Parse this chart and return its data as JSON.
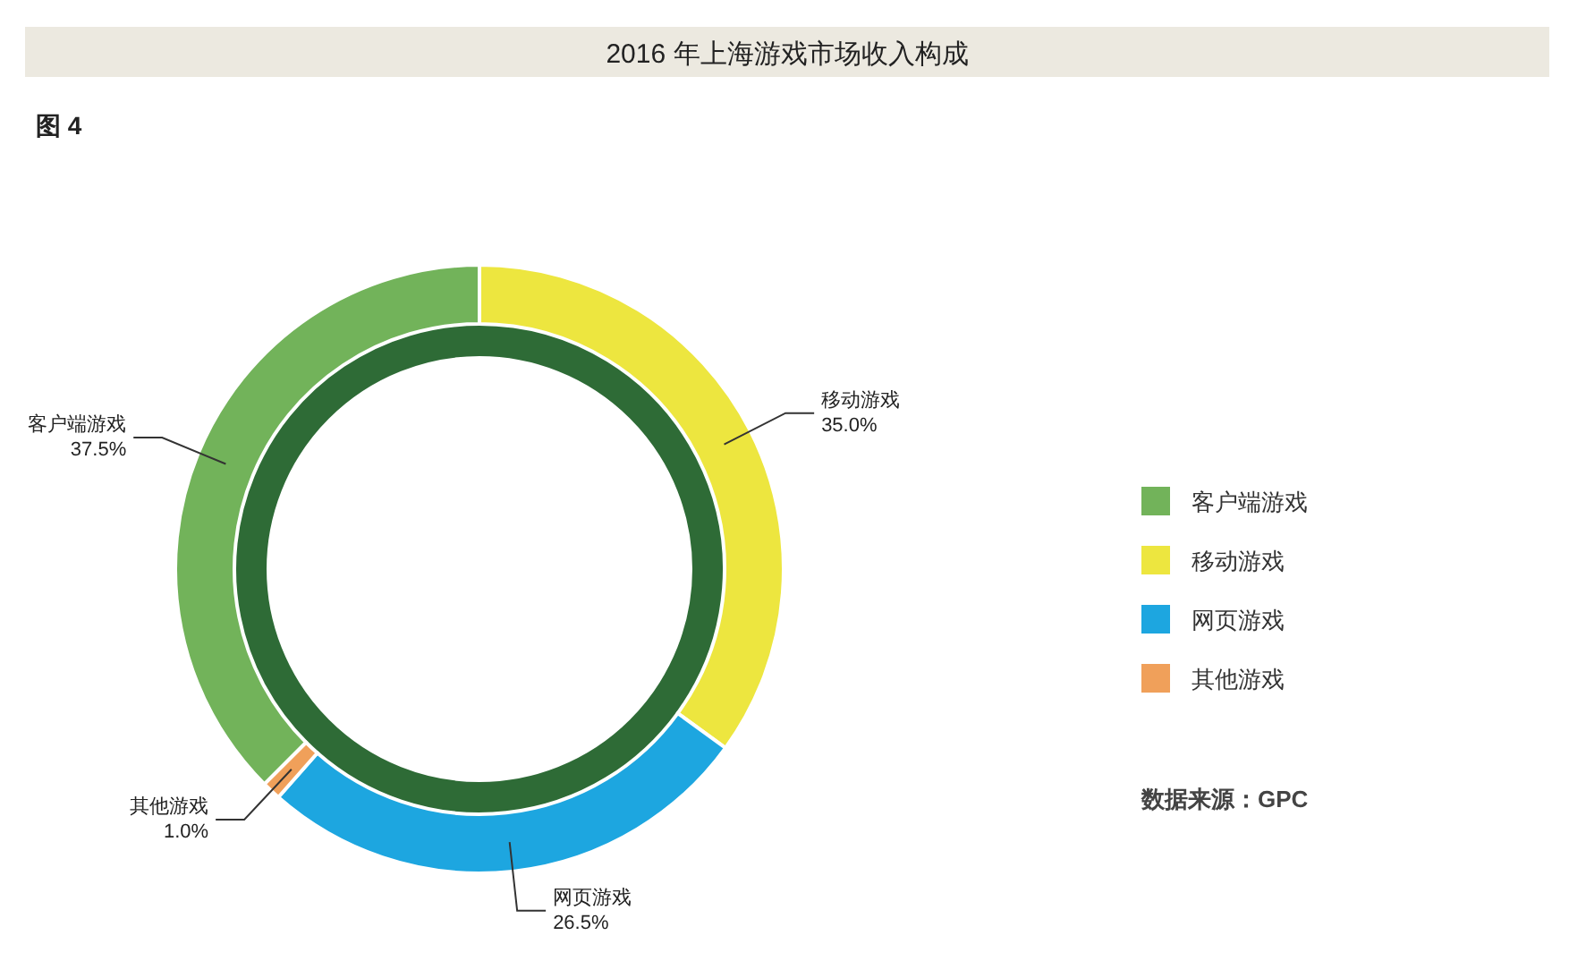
{
  "chart_data": {
    "type": "donut",
    "title": "2016 年上海游戏市场收入构成",
    "subtitle": "图 4",
    "categories": [
      "客户端游戏",
      "移动游戏",
      "网页游戏",
      "其他游戏"
    ],
    "values": [
      37.5,
      35.0,
      26.5,
      1.0
    ],
    "colors": [
      "#72b35a",
      "#ede63f",
      "#1da6e0",
      "#f0a05a"
    ],
    "value_labels": [
      "37.5%",
      "35.0%",
      "26.5%",
      "1.0%"
    ],
    "legend": "right",
    "annotations": [
      "数据来源：GPC"
    ]
  }
}
